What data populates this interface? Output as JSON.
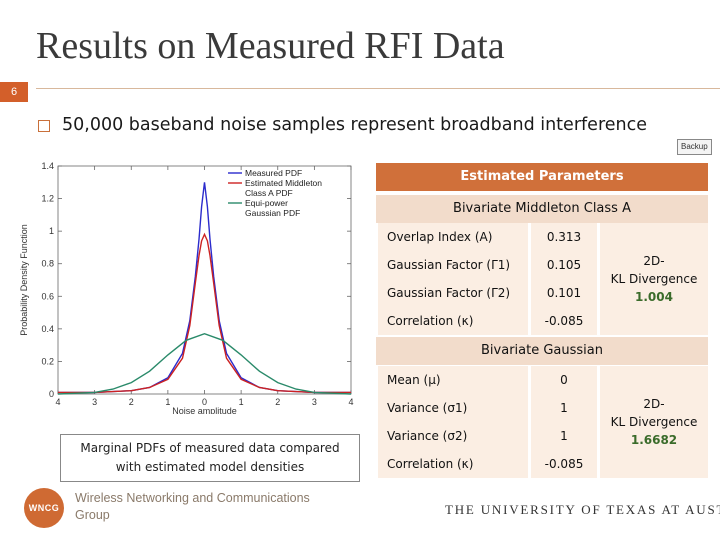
{
  "slide": {
    "title": "Results on Measured RFI Data",
    "number": "6",
    "bullet": "50,000 baseband noise samples represent broadband interference",
    "backup_label": "Backup"
  },
  "caption": {
    "line1": "Marginal PDFs of measured data compared",
    "line2": "with estimated model densities"
  },
  "footer": {
    "logo_text": "WNCG",
    "group_line1": "Wireless Networking and Communications",
    "group_line2": "Group",
    "university": "THE UNIVERSITY OF TEXAS AT AUSTIN"
  },
  "table": {
    "header": "Estimated Parameters",
    "middleton": {
      "title": "Bivariate Middleton Class A",
      "rows": [
        {
          "label": "Overlap Index (A)",
          "value": "0.313"
        },
        {
          "label": "Gaussian Factor (Γ1)",
          "value": "0.105"
        },
        {
          "label": "Gaussian Factor (Γ2)",
          "value": "0.101"
        },
        {
          "label": "Correlation (κ)",
          "value": "-0.085"
        }
      ],
      "kl_label_1": "2D-",
      "kl_label_2": "KL Divergence",
      "kl_value": "1.004"
    },
    "gaussian": {
      "title": "Bivariate  Gaussian",
      "rows": [
        {
          "label": "Mean (μ)",
          "value": "0"
        },
        {
          "label": "Variance (σ1)",
          "value": "1"
        },
        {
          "label": "Variance (σ2)",
          "value": "1"
        },
        {
          "label": "Correlation (κ)",
          "value": "-0.085"
        }
      ],
      "kl_label_1": "2D-",
      "kl_label_2": "KL Divergence",
      "kl_value": "1.6682"
    }
  },
  "chart_data": {
    "type": "line",
    "xlabel": "Noise amplitude",
    "ylabel": "Probability Density Function",
    "xlim": [
      -4,
      4
    ],
    "ylim": [
      0,
      1.4
    ],
    "xticks": [
      -4,
      -3,
      -2,
      -1,
      0,
      1,
      2,
      3,
      4
    ],
    "xtick_labels": [
      "4",
      "3",
      "2",
      "1",
      "0",
      "1",
      "2",
      "3",
      "4"
    ],
    "yticks": [
      0,
      0.2,
      0.4,
      0.6,
      0.8,
      1,
      1.2,
      1.4
    ],
    "ytick_labels": [
      "0",
      "0.2",
      "0.4",
      "0.6",
      "0.8",
      "1",
      "1.2",
      "1.4"
    ],
    "legend": [
      "Measured PDF",
      "Estimated Middleton Class A PDF",
      "Equi-power Gaussian PDF"
    ],
    "legend_position": "top-right",
    "series": [
      {
        "name": "Measured PDF",
        "color": "#2b2bcc",
        "x": [
          -4,
          -3,
          -2,
          -1.5,
          -1,
          -0.6,
          -0.4,
          -0.25,
          -0.15,
          -0.08,
          0,
          0.08,
          0.15,
          0.25,
          0.4,
          0.6,
          1,
          1.5,
          2,
          3,
          4
        ],
        "y": [
          0.01,
          0.01,
          0.02,
          0.04,
          0.1,
          0.25,
          0.45,
          0.72,
          0.95,
          1.15,
          1.3,
          1.15,
          0.95,
          0.72,
          0.45,
          0.25,
          0.1,
          0.04,
          0.02,
          0.01,
          0.01
        ]
      },
      {
        "name": "Estimated Middleton Class A PDF",
        "color": "#cc2222",
        "x": [
          -4,
          -3,
          -2,
          -1.5,
          -1,
          -0.6,
          -0.4,
          -0.25,
          -0.15,
          -0.08,
          0,
          0.08,
          0.15,
          0.25,
          0.4,
          0.6,
          1,
          1.5,
          2,
          3,
          4
        ],
        "y": [
          0.01,
          0.01,
          0.02,
          0.04,
          0.09,
          0.22,
          0.42,
          0.68,
          0.85,
          0.94,
          0.98,
          0.94,
          0.85,
          0.68,
          0.42,
          0.22,
          0.09,
          0.04,
          0.02,
          0.01,
          0.01
        ]
      },
      {
        "name": "Equi-power Gaussian PDF",
        "color": "#2a8a6a",
        "x": [
          -4,
          -3,
          -2.5,
          -2,
          -1.5,
          -1,
          -0.5,
          0,
          0.5,
          1,
          1.5,
          2,
          2.5,
          3,
          4
        ],
        "y": [
          0.0,
          0.01,
          0.03,
          0.07,
          0.14,
          0.24,
          0.33,
          0.37,
          0.33,
          0.24,
          0.14,
          0.07,
          0.03,
          0.01,
          0.0
        ]
      }
    ]
  }
}
